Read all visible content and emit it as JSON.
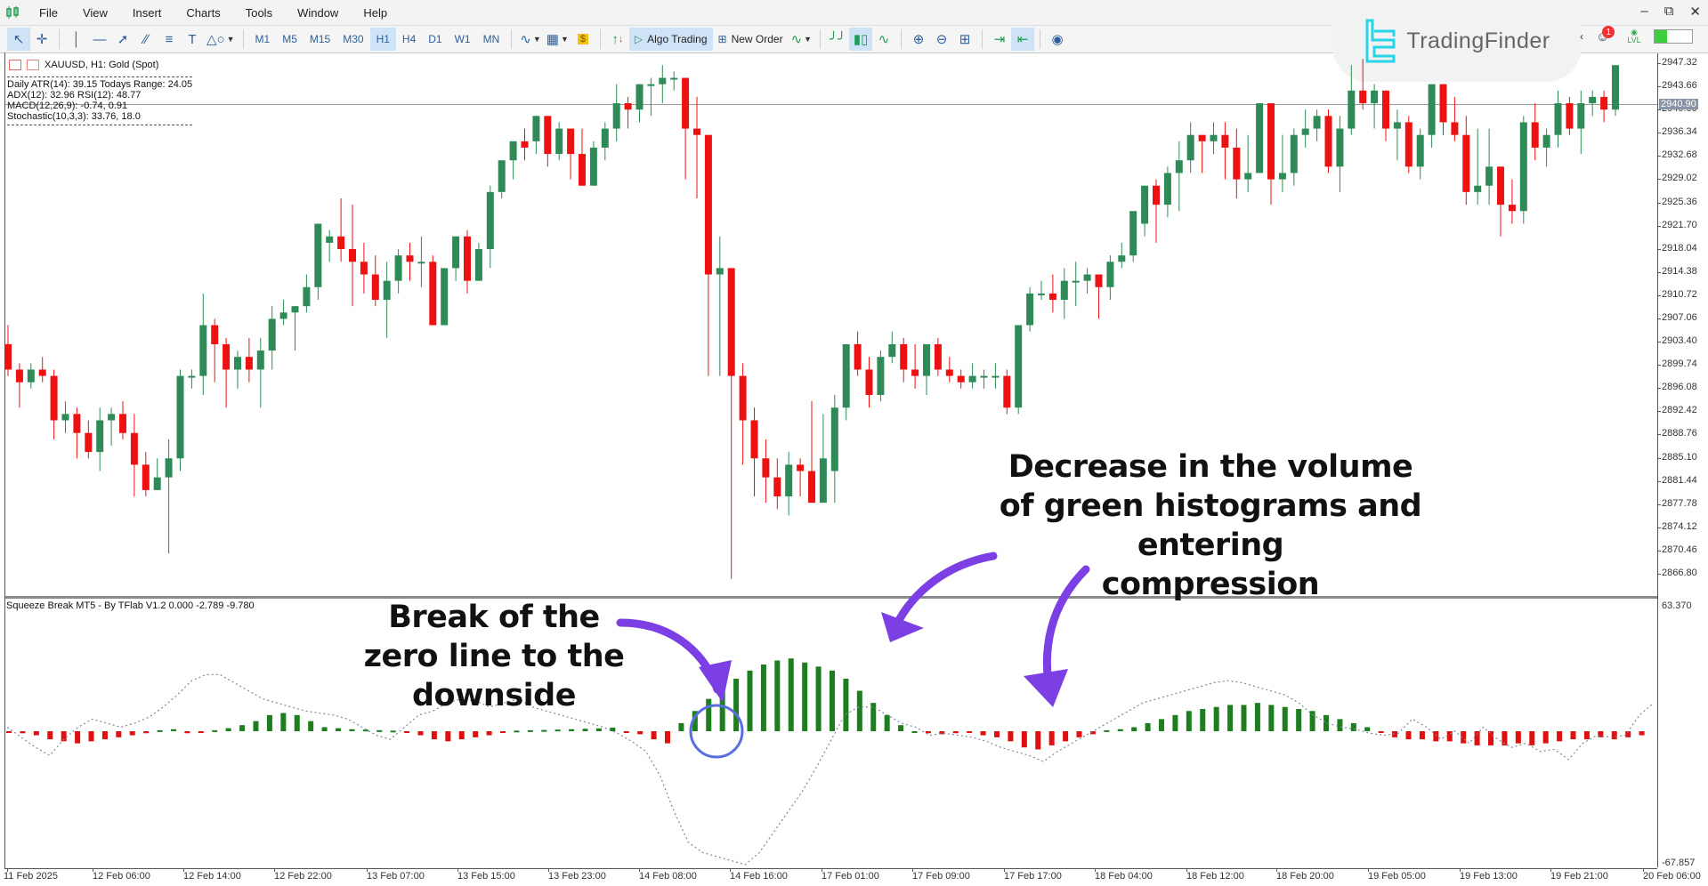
{
  "menubar": {
    "items": [
      "File",
      "View",
      "Insert",
      "Charts",
      "Tools",
      "Window",
      "Help"
    ],
    "window_controls": [
      "minimize-icon",
      "restore-icon",
      "close-icon"
    ]
  },
  "toolbar": {
    "timeframes": [
      "M1",
      "M5",
      "M15",
      "M30",
      "H1",
      "H4",
      "D1",
      "W1",
      "MN"
    ],
    "active_timeframe": "H1",
    "algo_trading_label": "Algo Trading",
    "new_order_label": "New Order"
  },
  "watermark": {
    "brand": "TradingFinder"
  },
  "account": {
    "notification_count": "1",
    "level_label": "LVL"
  },
  "chart": {
    "symbol_title": "XAUUSD, H1:  Gold (Spot)",
    "info_lines": [
      "Daily ATR(14): 39.15 Todays Range: 24.05",
      "ADX(12): 32.96 RSI(12): 48.77",
      "MACD(12,26,9): -0.74, 0.91",
      "Stochastic(10,3,3): 33.76, 18.0"
    ],
    "current_price": "2940.90",
    "price_axis": [
      "2947.32",
      "2943.66",
      "2940.00",
      "2936.34",
      "2932.68",
      "2929.02",
      "2925.36",
      "2921.70",
      "2918.04",
      "2914.38",
      "2910.72",
      "2907.06",
      "2903.40",
      "2899.74",
      "2896.08",
      "2892.42",
      "2888.76",
      "2885.10",
      "2881.44",
      "2877.78",
      "2874.12",
      "2870.46",
      "2866.80"
    ],
    "time_axis": [
      "11 Feb 2025",
      "12 Feb 06:00",
      "12 Feb 14:00",
      "12 Feb 22:00",
      "13 Feb 07:00",
      "13 Feb 15:00",
      "13 Feb 23:00",
      "14 Feb 08:00",
      "14 Feb 16:00",
      "17 Feb 01:00",
      "17 Feb 09:00",
      "17 Feb 17:00",
      "18 Feb 04:00",
      "18 Feb 12:00",
      "18 Feb 20:00",
      "19 Feb 05:00",
      "19 Feb 13:00",
      "19 Feb 21:00",
      "20 Feb 06:00"
    ],
    "up_color": "#2e8b57",
    "down_color": "#ee1111"
  },
  "indicator": {
    "title": "Squeeze Break MT5 - By TFlab V1.2 0.000 -2.789 -9.780",
    "axis_max": "63.370",
    "axis_min": "-67.857",
    "pos_color": "#1e7d1e",
    "neg_color": "#e01010",
    "signal_color": "#7a8aa0"
  },
  "annotations": {
    "zero_break": [
      "Break of the",
      "zero line to the downside"
    ],
    "compression": [
      "Decrease in the volume",
      "of green histograms and entering",
      "compression"
    ],
    "arrow_color": "#7b3fe4",
    "circle_color": "#5b6ee0"
  },
  "chart_data": {
    "type": "candlestick",
    "title": "XAUUSD, H1: Gold (Spot)",
    "ylim": [
      2866.8,
      2947.32
    ],
    "x_ticks": [
      "11 Feb 2025",
      "12 Feb 06:00",
      "12 Feb 14:00",
      "12 Feb 22:00",
      "13 Feb 07:00",
      "13 Feb 15:00",
      "13 Feb 23:00",
      "14 Feb 08:00",
      "14 Feb 16:00",
      "17 Feb 01:00",
      "17 Feb 09:00",
      "17 Feb 17:00",
      "18 Feb 04:00",
      "18 Feb 12:00",
      "18 Feb 20:00",
      "19 Feb 05:00",
      "19 Feb 13:00",
      "19 Feb 21:00",
      "20 Feb 06:00"
    ],
    "ohlc": [
      [
        2903,
        2906,
        2898,
        2899
      ],
      [
        2899,
        2900,
        2893,
        2897
      ],
      [
        2897,
        2900,
        2896,
        2899
      ],
      [
        2899,
        2901,
        2897,
        2898
      ],
      [
        2898,
        2899,
        2888,
        2891
      ],
      [
        2891,
        2894,
        2889,
        2892
      ],
      [
        2892,
        2893,
        2885,
        2889
      ],
      [
        2889,
        2891,
        2885,
        2886
      ],
      [
        2886,
        2893,
        2883,
        2891
      ],
      [
        2891,
        2893,
        2887,
        2892
      ],
      [
        2892,
        2894,
        2888,
        2889
      ],
      [
        2889,
        2892,
        2879,
        2884
      ],
      [
        2884,
        2886,
        2879,
        2880
      ],
      [
        2880,
        2885,
        2880,
        2882
      ],
      [
        2882,
        2888,
        2870,
        2885
      ],
      [
        2885,
        2899,
        2883,
        2898
      ],
      [
        2898,
        2899,
        2896,
        2898
      ],
      [
        2898,
        2911,
        2895,
        2906
      ],
      [
        2906,
        2907,
        2897,
        2903
      ],
      [
        2903,
        2904,
        2893,
        2899
      ],
      [
        2899,
        2902,
        2896,
        2901
      ],
      [
        2901,
        2904,
        2897,
        2899
      ],
      [
        2899,
        2904,
        2893,
        2902
      ],
      [
        2902,
        2909,
        2899,
        2907
      ],
      [
        2907,
        2910,
        2906,
        2908
      ],
      [
        2908,
        2909,
        2902,
        2909
      ],
      [
        2909,
        2914,
        2908,
        2912
      ],
      [
        2912,
        2921,
        2910,
        2922
      ],
      [
        2919,
        2921,
        2916,
        2920
      ],
      [
        2920,
        2926,
        2916,
        2918
      ],
      [
        2918,
        2925,
        2909,
        2916
      ],
      [
        2916,
        2919,
        2911,
        2914
      ],
      [
        2914,
        2917,
        2909,
        2910
      ],
      [
        2910,
        2916,
        2904,
        2913
      ],
      [
        2913,
        2918,
        2911,
        2917
      ],
      [
        2917,
        2919,
        2913,
        2916
      ],
      [
        2916,
        2920,
        2912,
        2916
      ],
      [
        2916,
        2917,
        2909,
        2906
      ],
      [
        2906,
        2915,
        2907,
        2915
      ],
      [
        2915,
        2920,
        2913,
        2920
      ],
      [
        2920,
        2921,
        2911,
        2913
      ],
      [
        2913,
        2919,
        2913,
        2918
      ],
      [
        2918,
        2928,
        2915,
        2927
      ],
      [
        2927,
        2931,
        2926,
        2932
      ],
      [
        2932,
        2935,
        2929,
        2935
      ],
      [
        2935,
        2937,
        2932,
        2934
      ],
      [
        2935,
        2939,
        2933,
        2939
      ],
      [
        2939,
        2938,
        2931,
        2933
      ],
      [
        2933,
        2938,
        2932,
        2937
      ],
      [
        2937,
        2936,
        2929,
        2933
      ],
      [
        2933,
        2937,
        2928,
        2928
      ],
      [
        2928,
        2935,
        2928,
        2934
      ],
      [
        2934,
        2938,
        2932,
        2937
      ],
      [
        2937,
        2944,
        2935,
        2941
      ],
      [
        2941,
        2942,
        2937,
        2940
      ],
      [
        2940,
        2944,
        2938,
        2944
      ],
      [
        2944,
        2945,
        2939,
        2944
      ],
      [
        2944,
        2947,
        2941,
        2945
      ],
      [
        2945,
        2946,
        2943,
        2945
      ],
      [
        2945,
        2944,
        2929,
        2937
      ],
      [
        2937,
        2942,
        2926,
        2936
      ],
      [
        2936,
        2936,
        2898,
        2914
      ],
      [
        2914,
        2920,
        2898,
        2915
      ],
      [
        2915,
        2915,
        2866,
        2898
      ],
      [
        2898,
        2900,
        2884,
        2891
      ],
      [
        2891,
        2893,
        2879,
        2885
      ],
      [
        2885,
        2888,
        2878,
        2882
      ],
      [
        2882,
        2885,
        2877,
        2879
      ],
      [
        2879,
        2886,
        2876,
        2884
      ],
      [
        2884,
        2885,
        2879,
        2883
      ],
      [
        2883,
        2894,
        2878,
        2878
      ],
      [
        2878,
        2892,
        2878,
        2885
      ]
    ],
    "indicator_histogram": [
      -0.5,
      -1,
      -2,
      -4,
      -5,
      -6,
      -5,
      -4,
      -3,
      -2,
      -1,
      0.5,
      1,
      -1,
      -0.5,
      0.5,
      1.5,
      3,
      5,
      8,
      9,
      8,
      5,
      2,
      1.5,
      1,
      0.8,
      0.5,
      0.3,
      -0.5,
      -2,
      -4,
      -5,
      -4,
      -3,
      -2,
      -0.5,
      0.3,
      0.5,
      0.6,
      0.8,
      1,
      1.2,
      1.4,
      1.8,
      -0.5,
      -1.5,
      -4,
      -6,
      4,
      10,
      16,
      22,
      26,
      30,
      33,
      35,
      36,
      34,
      32,
      30,
      26,
      20,
      14,
      8,
      3,
      0,
      -1,
      -1.5,
      -1,
      -0.6,
      -2,
      -3,
      -5,
      -8,
      -9,
      -7,
      -5,
      -3,
      -1.5,
      0.5,
      1,
      2,
      4,
      6,
      8,
      10,
      11,
      12,
      13,
      13,
      14,
      13,
      12,
      11,
      10,
      8,
      6,
      4,
      2,
      -0.5,
      -3,
      -4,
      -4,
      -5,
      -5,
      -6,
      -7,
      -7,
      -7,
      -6,
      -7,
      -6,
      -5,
      -4,
      -4,
      -3,
      -4,
      -3,
      -2
    ],
    "indicator_signal_line": [
      2,
      -3,
      -8,
      -12,
      -4,
      2,
      6,
      4,
      2,
      4,
      7,
      12,
      18,
      25,
      28,
      28,
      24,
      20,
      16,
      14,
      12,
      10,
      9,
      8,
      6,
      2,
      -2,
      -4,
      2,
      8,
      10,
      14,
      16,
      15,
      12,
      14,
      16,
      12,
      10,
      8,
      6,
      4,
      2,
      -1,
      -5,
      -10,
      -22,
      -40,
      -55,
      -60,
      -62,
      -64,
      -66,
      -60,
      -50,
      -40,
      -30,
      -18,
      -5,
      8,
      12,
      12,
      8,
      4,
      2,
      -2,
      -1,
      -2,
      -3,
      -5,
      -8,
      -10,
      -12,
      -15,
      -10,
      -6,
      -2,
      2,
      6,
      10,
      14,
      16,
      18,
      20,
      22,
      24,
      25,
      24,
      22,
      20,
      18,
      14,
      8,
      4,
      2,
      1,
      -1,
      -2,
      -1,
      6,
      2,
      -4,
      0,
      -6,
      2,
      -4,
      -8,
      -6,
      -10,
      -9,
      -14,
      -6,
      -2,
      -3,
      -2,
      8,
      14
    ],
    "indicator_ylim": [
      -67.857,
      63.37
    ]
  }
}
